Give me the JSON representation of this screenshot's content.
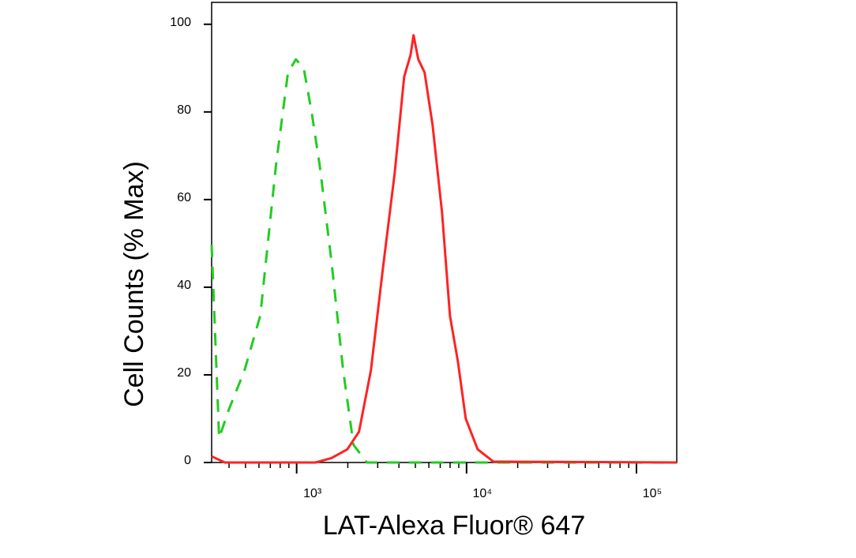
{
  "chart_data": {
    "type": "line",
    "x_label": "LAT-Alexa Fluor® 647",
    "y_label": "Cell Counts (% Max)",
    "x_scale": "log",
    "xlim": [
      316,
      172600
    ],
    "ylim": [
      0,
      105
    ],
    "xticks": [
      {
        "value": 1000,
        "label": "10³"
      },
      {
        "value": 10000,
        "label": "10⁴"
      },
      {
        "value": 100000,
        "label": "10⁵"
      }
    ],
    "x_minor_ticks": [
      400,
      500,
      600,
      700,
      800,
      900,
      2000,
      3000,
      4000,
      5000,
      6000,
      7000,
      8000,
      9000,
      20000,
      30000,
      40000,
      50000,
      60000,
      70000,
      80000,
      90000
    ],
    "yticks": [
      0,
      20,
      40,
      60,
      80,
      100
    ],
    "series": [
      {
        "color": "#22cc22",
        "dashed": true,
        "x": [
          316,
          350,
          398,
          493,
          611,
          757,
          889,
          990,
          1101,
          1225,
          1365,
          1602,
          1880,
          2163,
          2594,
          6440,
          172600
        ],
        "values": [
          49.7,
          5.6,
          12,
          21,
          33.5,
          68,
          89,
          92,
          90,
          80,
          68,
          46,
          21,
          4,
          0,
          0,
          0
        ]
      },
      {
        "color": "#ff2222",
        "dashed": false,
        "x": [
          316,
          378,
          1293,
          1602,
          1986,
          2328,
          2735,
          3213,
          3774,
          4295,
          4680,
          4878,
          5200,
          5664,
          6309,
          7175,
          7983,
          8892,
          9893,
          11620,
          14390,
          172600
        ],
        "values": [
          1.4,
          0,
          0,
          1,
          3,
          7,
          21,
          44,
          66,
          88,
          93,
          97.5,
          92,
          89,
          77,
          57,
          33.5,
          23,
          10,
          3,
          0.2,
          0
        ]
      }
    ]
  }
}
